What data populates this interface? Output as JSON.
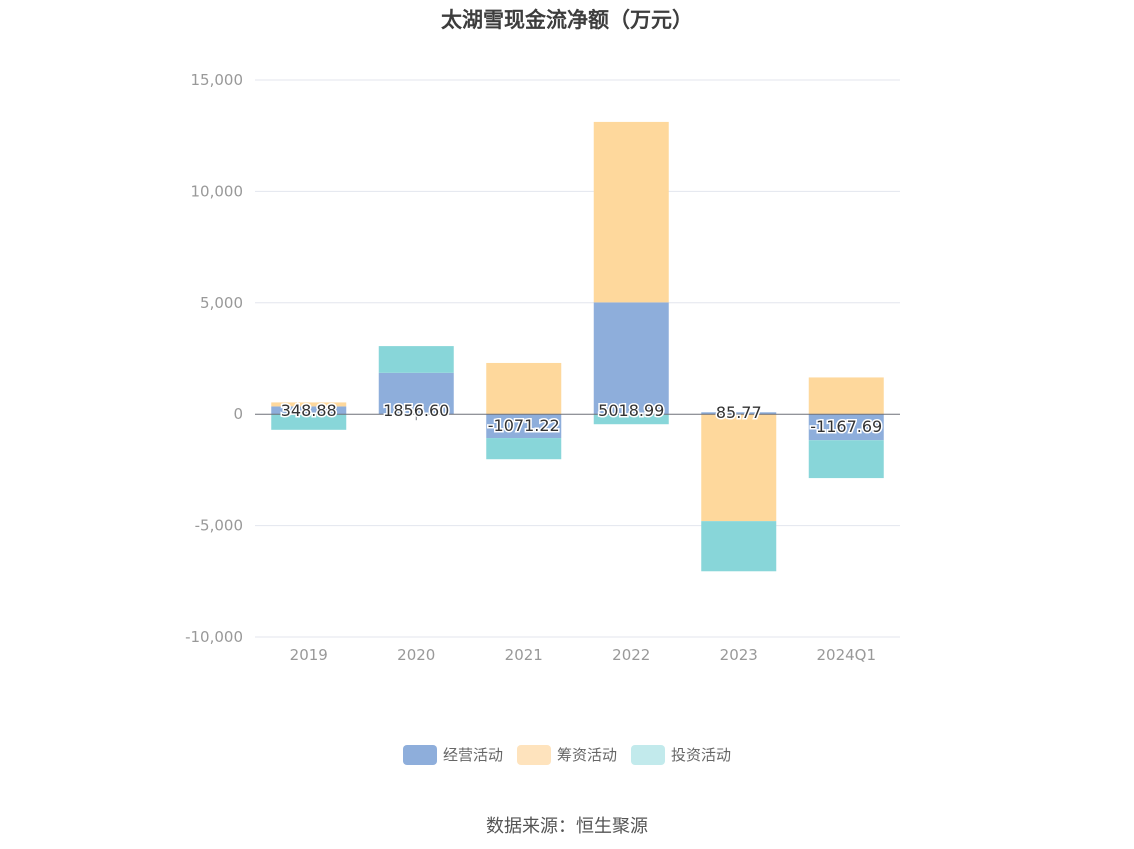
{
  "chart_data": {
    "type": "bar",
    "stacked": true,
    "title": "太湖雪现金流净额（万元）",
    "categories": [
      "2019",
      "2020",
      "2021",
      "2022",
      "2023",
      "2024Q1"
    ],
    "series": [
      {
        "name": "经营活动",
        "color": "#8eaedb",
        "values": [
          348.88,
          1856.6,
          -1071.22,
          5018.99,
          85.77,
          -1167.69
        ]
      },
      {
        "name": "筹资活动",
        "color": "#fed89c",
        "values": [
          180,
          0,
          2300,
          8100,
          -4800,
          1650
        ]
      },
      {
        "name": "投资活动",
        "color": "#88d6d9",
        "values": [
          -700,
          1200,
          -950,
          -450,
          -2250,
          -1700
        ]
      }
    ],
    "data_labels": [
      "348.88",
      "1856.60",
      "-1071.22",
      "5018.99",
      "85.77",
      "-1167.69"
    ],
    "ylim": [
      -10000,
      15000
    ],
    "yticks": [
      15000,
      10000,
      5000,
      0,
      -5000,
      -10000
    ],
    "ytick_labels": [
      "15,000",
      "10,000",
      "5,000",
      "0",
      "-5,000",
      "-10,000"
    ],
    "legend_position": "bottom",
    "grid": true
  },
  "legend": [
    {
      "label": "经营活动",
      "color": "#8eaedb"
    },
    {
      "label": "筹资活动",
      "color": "#fee3bd"
    },
    {
      "label": "投资活动",
      "color": "#c2eaec"
    }
  ],
  "source": "数据来源：恒生聚源"
}
